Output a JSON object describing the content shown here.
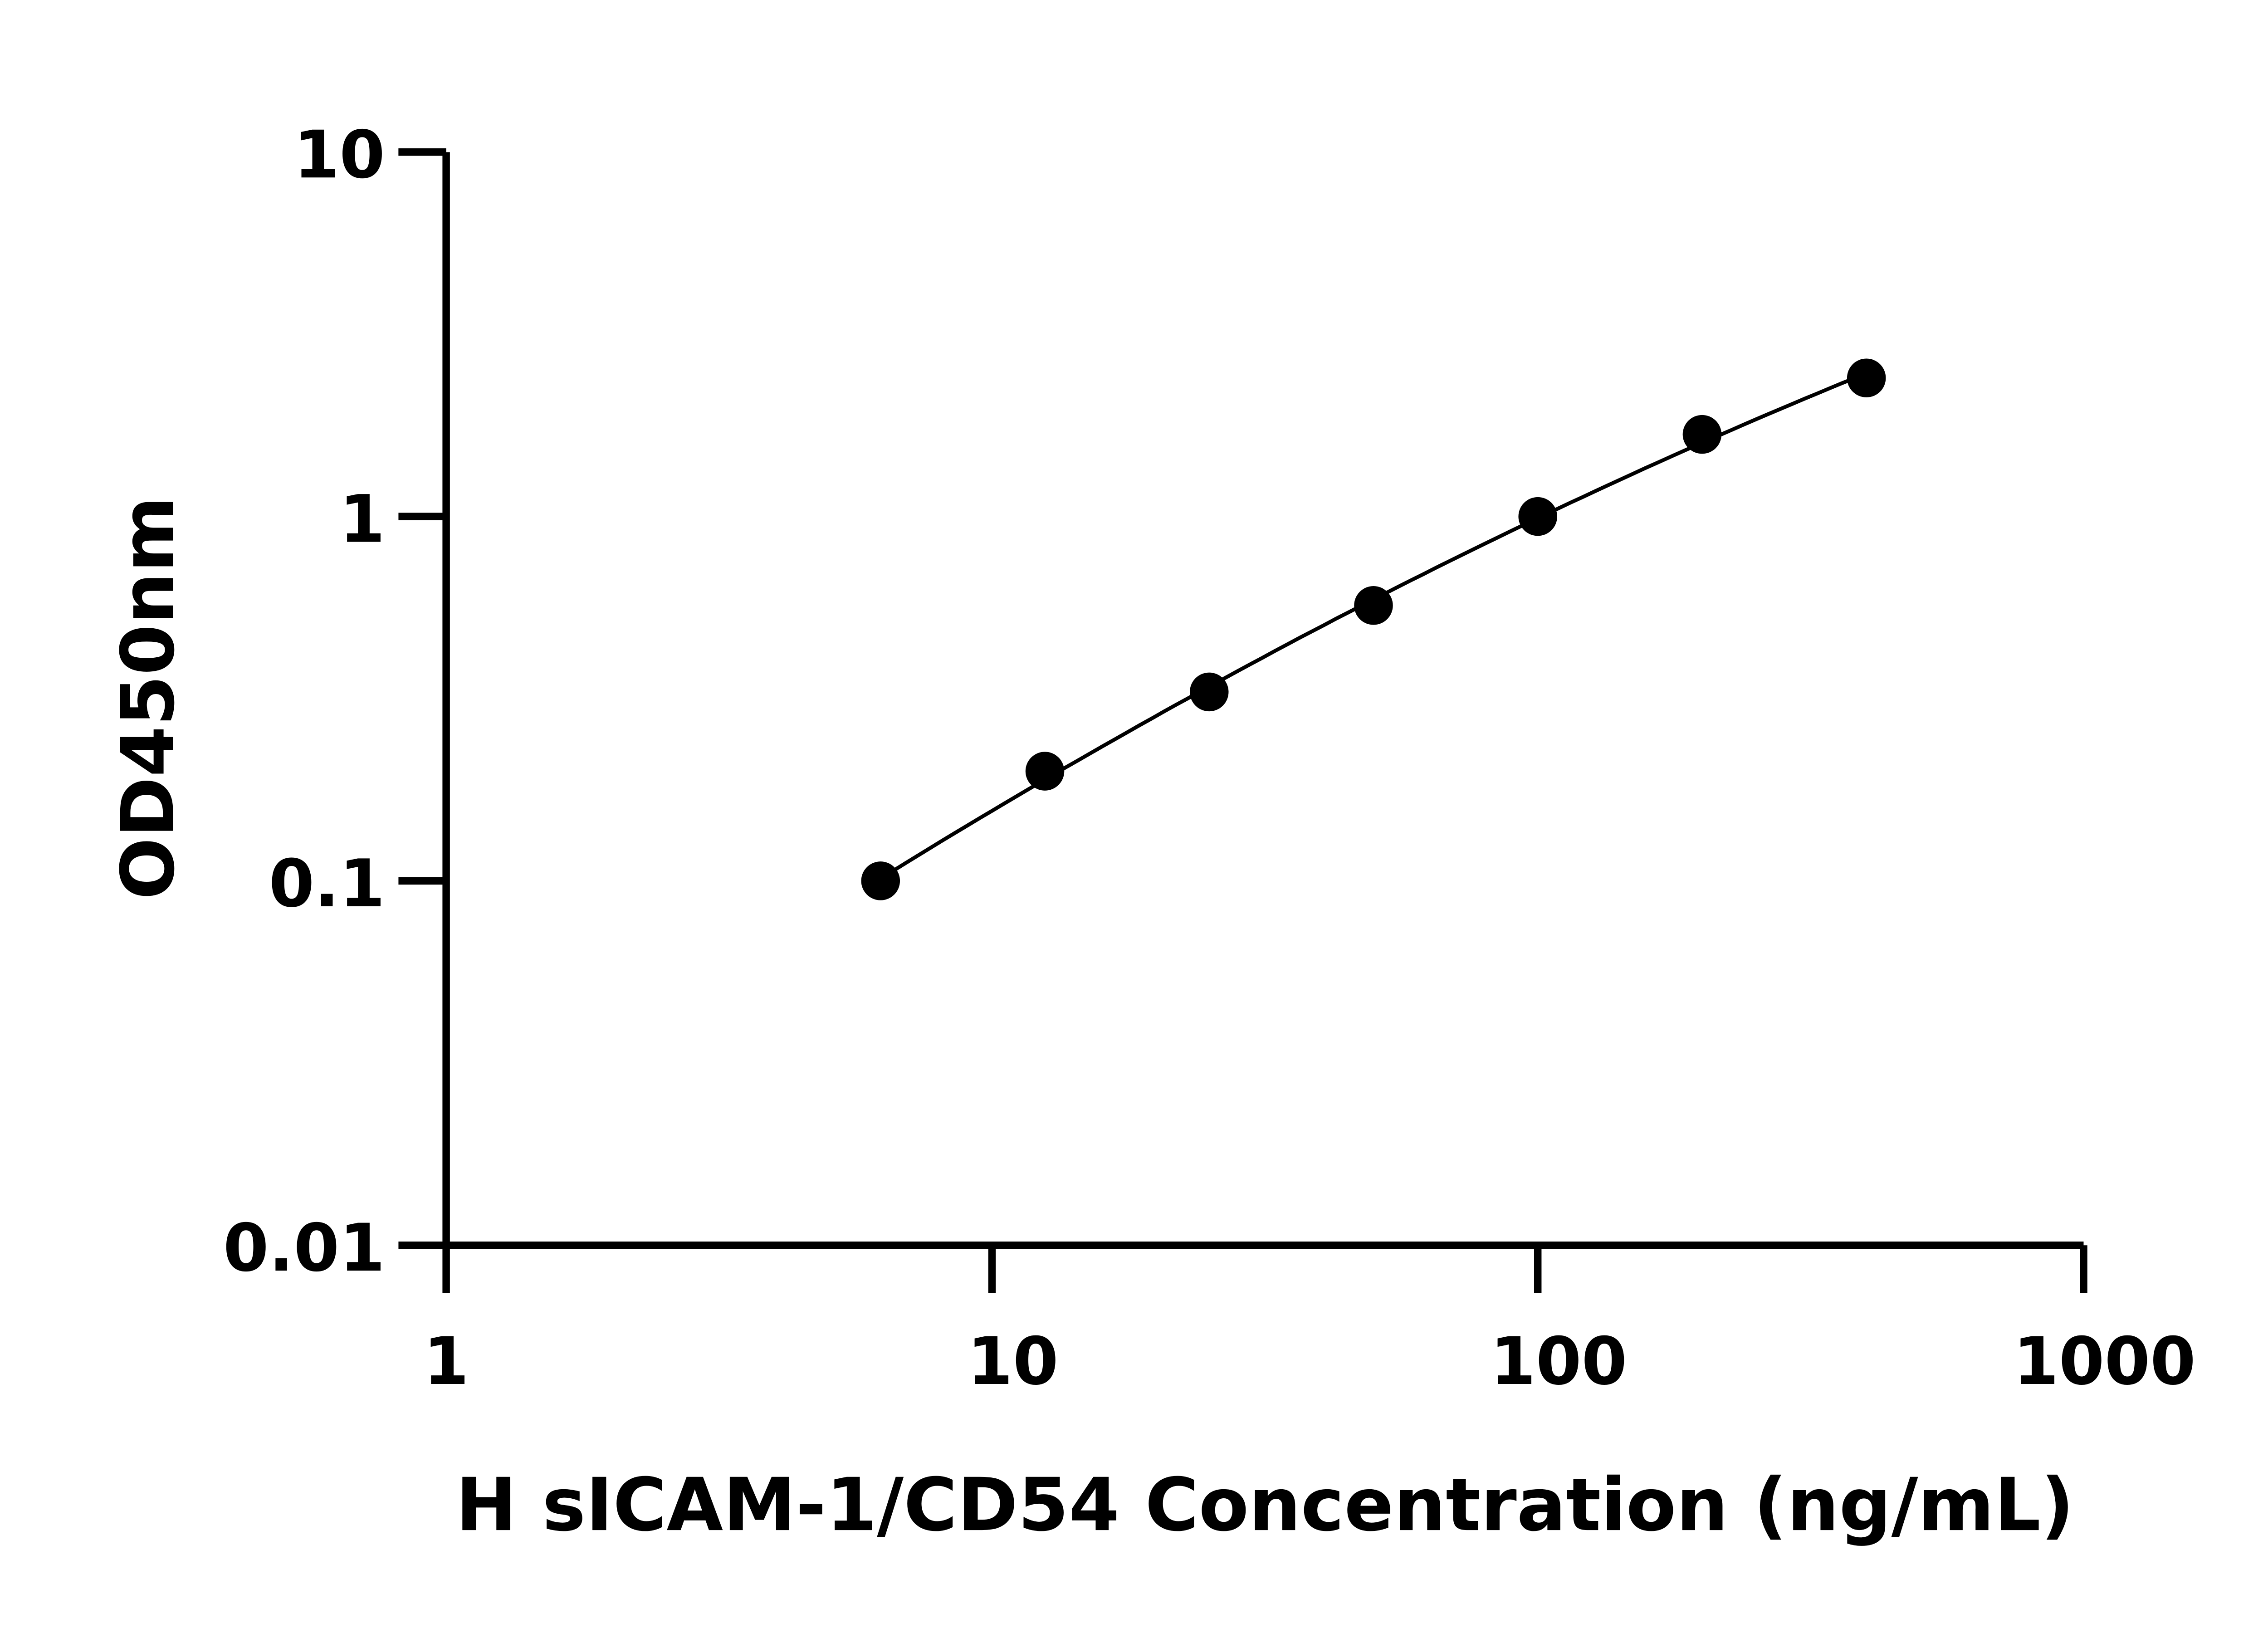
{
  "chart_data": {
    "type": "scatter",
    "title": "",
    "xlabel": "H sICAM-1/CD54 Concentration (ng/mL)",
    "ylabel": "OD450nm",
    "x_scale": "log",
    "y_scale": "log",
    "xlim": [
      1,
      1000
    ],
    "ylim": [
      0.01,
      10
    ],
    "x_ticks": [
      "1",
      "10",
      "100",
      "1000"
    ],
    "y_ticks": [
      "0.01",
      "0.1",
      "1",
      "10"
    ],
    "grid": false,
    "fit_line": true,
    "point_color": "#000000",
    "series": [
      {
        "x": [
          6.25,
          12.5,
          25,
          50,
          100,
          200,
          400
        ],
        "y": [
          0.1,
          0.2,
          0.33,
          0.57,
          1.0,
          1.68,
          2.4
        ]
      }
    ]
  }
}
